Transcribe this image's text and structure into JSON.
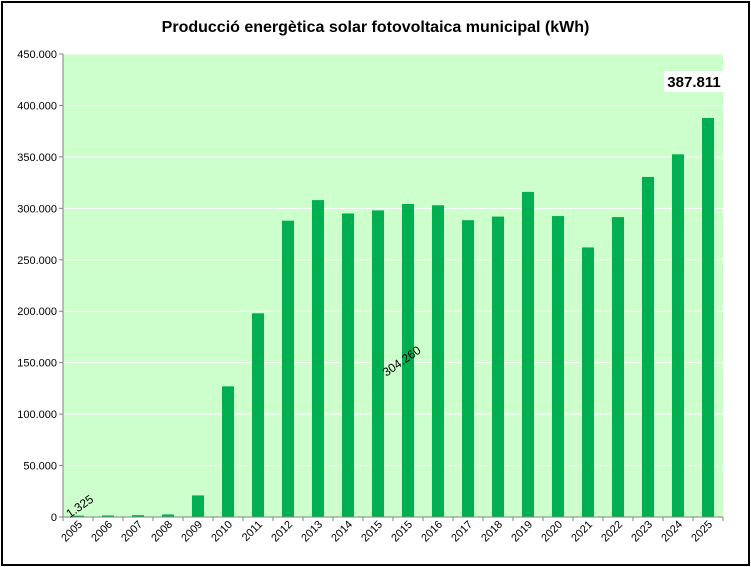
{
  "chart_data": {
    "type": "bar",
    "title": "Producció energètica solar fotovoltaica municipal (kWh)",
    "xlabel": "",
    "ylabel": "",
    "ylim": [
      0,
      450000
    ],
    "yticks": [
      "0",
      "50.000",
      "100.000",
      "150.000",
      "200.000",
      "250.000",
      "300.000",
      "350.000",
      "400.000",
      "450.000"
    ],
    "categories": [
      "2005",
      "2006",
      "2007",
      "2008",
      "2009",
      "2010",
      "2011",
      "2012",
      "2013",
      "2014",
      "2015",
      "2015",
      "2016",
      "2017",
      "2018",
      "2019",
      "2020",
      "2021",
      "2022",
      "2023",
      "2024",
      "2025"
    ],
    "values": [
      1325,
      1500,
      1800,
      2500,
      21000,
      127000,
      198000,
      288000,
      308000,
      295000,
      298000,
      304260,
      303000,
      288500,
      292000,
      316000,
      292500,
      262000,
      291500,
      330500,
      352500,
      387811
    ],
    "annotations": [
      {
        "text": "1.325",
        "category_index": 0
      },
      {
        "text": "304.260",
        "category_index": 11
      },
      {
        "text": "387.811",
        "category_index": 21
      }
    ],
    "colors": {
      "plot_background": "#ccffcc",
      "bar": "#00b050",
      "gridline": "#ffffff",
      "axis": "#808080"
    },
    "grid": true
  }
}
